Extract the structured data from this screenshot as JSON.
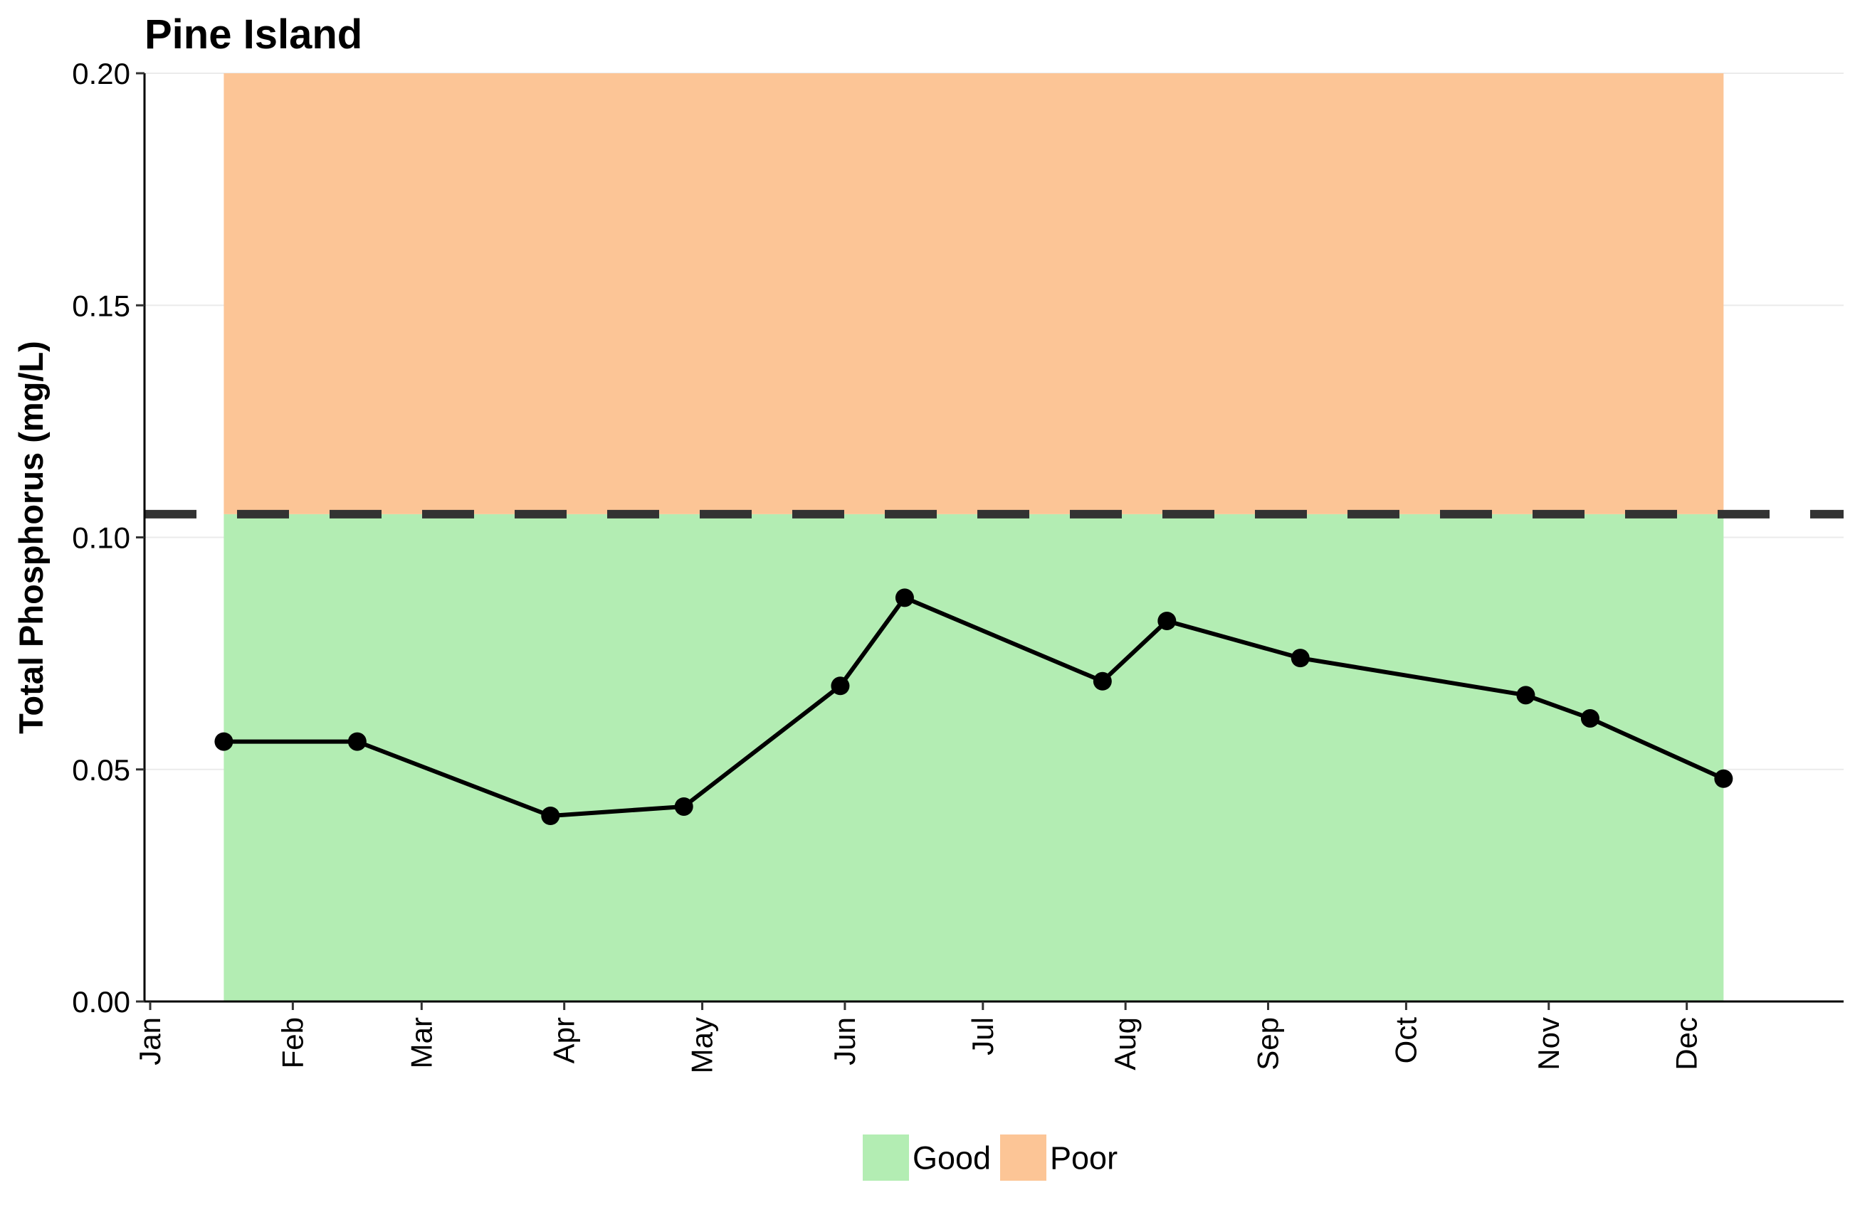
{
  "chart_data": {
    "type": "line",
    "title": "Pine Island",
    "xlabel": "",
    "ylabel": "Total Phosphorus (mg/L)",
    "ylim": [
      0,
      0.2
    ],
    "xlim_day_of_year": [
      0,
      365
    ],
    "y_ticks": [
      {
        "value": 0.0,
        "label": "0.00"
      },
      {
        "value": 0.05,
        "label": "0.05"
      },
      {
        "value": 0.1,
        "label": "0.10"
      },
      {
        "value": 0.15,
        "label": "0.15"
      },
      {
        "value": 0.2,
        "label": "0.20"
      }
    ],
    "x_ticks": [
      {
        "day": 0,
        "label": "Jan"
      },
      {
        "day": 31,
        "label": "Feb"
      },
      {
        "day": 59,
        "label": "Mar"
      },
      {
        "day": 90,
        "label": "Apr"
      },
      {
        "day": 120,
        "label": "May"
      },
      {
        "day": 151,
        "label": "Jun"
      },
      {
        "day": 181,
        "label": "Jul"
      },
      {
        "day": 212,
        "label": "Aug"
      },
      {
        "day": 243,
        "label": "Sep"
      },
      {
        "day": 273,
        "label": "Oct"
      },
      {
        "day": 304,
        "label": "Nov"
      },
      {
        "day": 334,
        "label": "Dec"
      }
    ],
    "threshold": {
      "value": 0.105,
      "style": "dashed"
    },
    "bands": [
      {
        "name": "Good",
        "y_from": 0.0,
        "y_to": 0.105,
        "x_from_day": 16,
        "x_to_day": 342,
        "color": "#b3edb3"
      },
      {
        "name": "Poor",
        "y_from": 0.105,
        "y_to": 0.2,
        "x_from_day": 16,
        "x_to_day": 342,
        "color": "#fcc596"
      }
    ],
    "series": [
      {
        "name": "Total Phosphorus",
        "color": "#000000",
        "points": [
          {
            "day": 16,
            "value": 0.056
          },
          {
            "day": 45,
            "value": 0.056
          },
          {
            "day": 87,
            "value": 0.04
          },
          {
            "day": 116,
            "value": 0.042
          },
          {
            "day": 150,
            "value": 0.068
          },
          {
            "day": 164,
            "value": 0.087
          },
          {
            "day": 207,
            "value": 0.069
          },
          {
            "day": 221,
            "value": 0.082
          },
          {
            "day": 250,
            "value": 0.074
          },
          {
            "day": 299,
            "value": 0.066
          },
          {
            "day": 313,
            "value": 0.061
          },
          {
            "day": 342,
            "value": 0.048
          }
        ]
      }
    ],
    "legend": {
      "position": "bottom",
      "items": [
        {
          "label": "Good",
          "color": "#b3edb3"
        },
        {
          "label": "Poor",
          "color": "#fcc596"
        }
      ]
    },
    "grid": true
  }
}
